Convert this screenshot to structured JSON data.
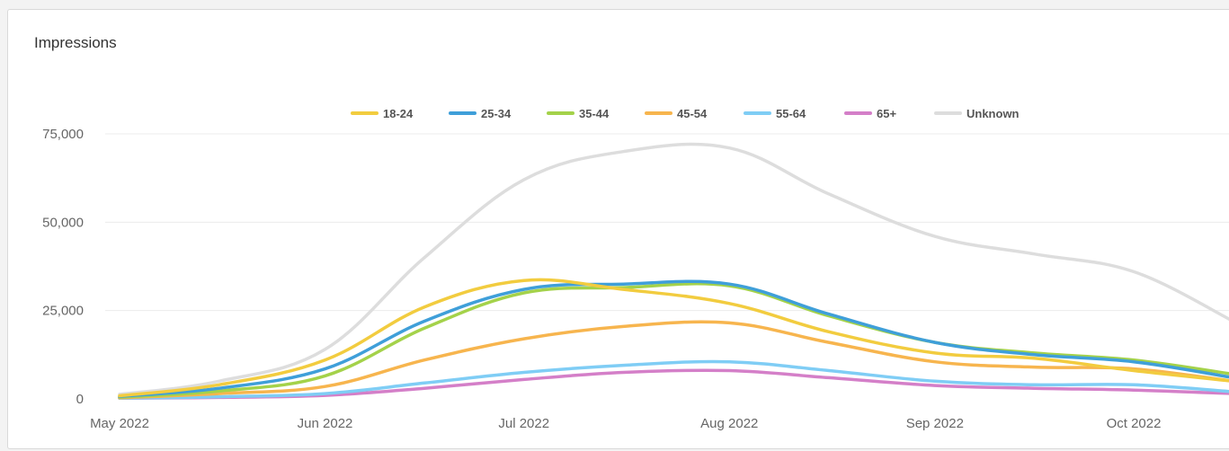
{
  "card": {
    "title": "Impressions"
  },
  "chart_data": {
    "type": "line",
    "title": "Impressions",
    "x": [
      "2022-05-01",
      "2022-05-16",
      "2022-06-01",
      "2022-06-16",
      "2022-07-01",
      "2022-07-16",
      "2022-08-01",
      "2022-08-16",
      "2022-09-01",
      "2022-09-16",
      "2022-10-01",
      "2022-10-16"
    ],
    "x_tick_labels": [
      "May 2022",
      "Jun 2022",
      "Jul 2022",
      "Aug 2022",
      "Sep 2022",
      "Oct 2022"
    ],
    "y_ticks": [
      0,
      25000,
      50000,
      75000
    ],
    "y_tick_labels": [
      "0",
      "25,000",
      "50,000",
      "75,000"
    ],
    "ylim": [
      0,
      75000
    ],
    "grid": true,
    "legend": "top-center",
    "series": [
      {
        "name": "18-24",
        "color": "#f2cc3f",
        "values": [
          900,
          4000,
          11000,
          26000,
          33500,
          31000,
          27000,
          19000,
          13000,
          11500,
          8000,
          5000
        ]
      },
      {
        "name": "25-34",
        "color": "#3f9fd9",
        "values": [
          700,
          3000,
          8500,
          22000,
          31000,
          32500,
          32500,
          24000,
          16000,
          12500,
          10500,
          6000
        ]
      },
      {
        "name": "35-44",
        "color": "#a4d24a",
        "values": [
          500,
          2200,
          6500,
          20000,
          30000,
          31500,
          32000,
          23500,
          16000,
          13000,
          11000,
          7000
        ]
      },
      {
        "name": "45-54",
        "color": "#f7b54e",
        "values": [
          300,
          1500,
          3500,
          11000,
          17000,
          20500,
          21500,
          16000,
          10500,
          9000,
          8500,
          5000
        ]
      },
      {
        "name": "55-64",
        "color": "#7fcdf5",
        "values": [
          200,
          600,
          1500,
          4500,
          7500,
          9500,
          10500,
          8000,
          5000,
          4000,
          4000,
          2000
        ]
      },
      {
        "name": "65+",
        "color": "#d47fc8",
        "values": [
          200,
          400,
          1000,
          3000,
          5500,
          7500,
          8000,
          6000,
          3800,
          3000,
          2500,
          1500
        ]
      },
      {
        "name": "Unknown",
        "color": "#dddddd",
        "values": [
          1300,
          5000,
          14000,
          40000,
          62000,
          70000,
          71000,
          58000,
          46000,
          41000,
          36000,
          22000
        ]
      }
    ]
  }
}
